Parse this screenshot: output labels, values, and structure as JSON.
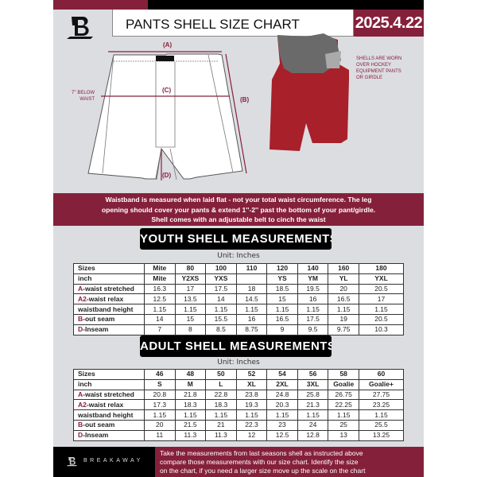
{
  "header": {
    "title": "PANTS SHELL SIZE CHART",
    "date": "2025.4.22"
  },
  "diagram": {
    "label_a": "(A)",
    "label_b": "(B)",
    "label_c": "(C)",
    "label_d": "(D)",
    "below_waist": [
      "7'' BELOW",
      "WAIST"
    ],
    "note": [
      "SHELLS ARE WORN",
      "OVER HOCKEY",
      "EQUIPMENT PANTS",
      "OR GIRDLE"
    ]
  },
  "colors": {
    "brand": "#85203b",
    "shell": "#a8202a"
  },
  "banner": [
    "Waistband is measured when laid flat - not your total waist circumference. The leg",
    "opening should cover your pants & extend 1''-2'' past the bottom of your pant/girdle.",
    "Shell comes with an adjustable belt to cinch the waist"
  ],
  "youth": {
    "title": "YOUTH SHELL MEASUREMENTS",
    "unit": "Unit: Inches",
    "rows": [
      {
        "prefix": "",
        "label": "Sizes",
        "values": [
          "Mite",
          "80",
          "100",
          "110",
          "120",
          "140",
          "160",
          "180"
        ]
      },
      {
        "prefix": "",
        "label": "inch",
        "values": [
          "Mite",
          "Y2XS",
          "YXS",
          "",
          "YS",
          "YM",
          "YL",
          "YXL"
        ]
      },
      {
        "prefix": "A",
        "label": "-waist stretched",
        "values": [
          "16.3",
          "17",
          "17.5",
          "18",
          "18.5",
          "19.5",
          "20",
          "20.5"
        ]
      },
      {
        "prefix": "A2",
        "label": "-waist relax",
        "values": [
          "12.5",
          "13.5",
          "14",
          "14.5",
          "15",
          "16",
          "16.5",
          "17"
        ]
      },
      {
        "prefix": "",
        "label": "waistband height",
        "values": [
          "1.15",
          "1.15",
          "1.15",
          "1.15",
          "1.15",
          "1.15",
          "1.15",
          "1.15"
        ]
      },
      {
        "prefix": "B",
        "label": "-out seam",
        "values": [
          "14",
          "15",
          "15.5",
          "16",
          "16.5",
          "17.5",
          "19",
          "20.5"
        ]
      },
      {
        "prefix": "D",
        "label": "-Inseam",
        "values": [
          "7",
          "8",
          "8.5",
          "8.75",
          "9",
          "9.5",
          "9.75",
          "10.3"
        ]
      }
    ]
  },
  "adult": {
    "title": "ADULT SHELL MEASUREMENTS",
    "unit": "Unit: Inches",
    "rows": [
      {
        "prefix": "",
        "label": "Sizes",
        "values": [
          "46",
          "48",
          "50",
          "52",
          "54",
          "56",
          "58",
          "60"
        ]
      },
      {
        "prefix": "",
        "label": "inch",
        "values": [
          "S",
          "M",
          "L",
          "XL",
          "2XL",
          "3XL",
          "Goalie",
          "Goalie+"
        ]
      },
      {
        "prefix": "A",
        "label": "-waist stretched",
        "values": [
          "20.8",
          "21.8",
          "22.8",
          "23.8",
          "24.8",
          "25.8",
          "26.75",
          "27.75"
        ]
      },
      {
        "prefix": "A2",
        "label": "-waist relax",
        "values": [
          "17.3",
          "18.3",
          "18.3",
          "19.3",
          "20.3",
          "21.3",
          "22.25",
          "23.25"
        ]
      },
      {
        "prefix": "",
        "label": "waistband height",
        "values": [
          "1.15",
          "1.15",
          "1.15",
          "1.15",
          "1.15",
          "1.15",
          "1.15",
          "1.15"
        ]
      },
      {
        "prefix": "B",
        "label": "-out seam",
        "values": [
          "20",
          "21.5",
          "21",
          "22.3",
          "23",
          "24",
          "25",
          "25.5"
        ]
      },
      {
        "prefix": "D",
        "label": "-Inseam",
        "values": [
          "11",
          "11.3",
          "11.3",
          "12",
          "12.5",
          "12.8",
          "13",
          "13.25"
        ]
      }
    ]
  },
  "footer": {
    "brand": "BREAKAWAY",
    "text": [
      "Take the measurements from last seasons shell as instructed above",
      "compare those measurements  with our size chart. Identify the size",
      "on the chart, if you need a larger size move up the scale on the chart"
    ]
  }
}
